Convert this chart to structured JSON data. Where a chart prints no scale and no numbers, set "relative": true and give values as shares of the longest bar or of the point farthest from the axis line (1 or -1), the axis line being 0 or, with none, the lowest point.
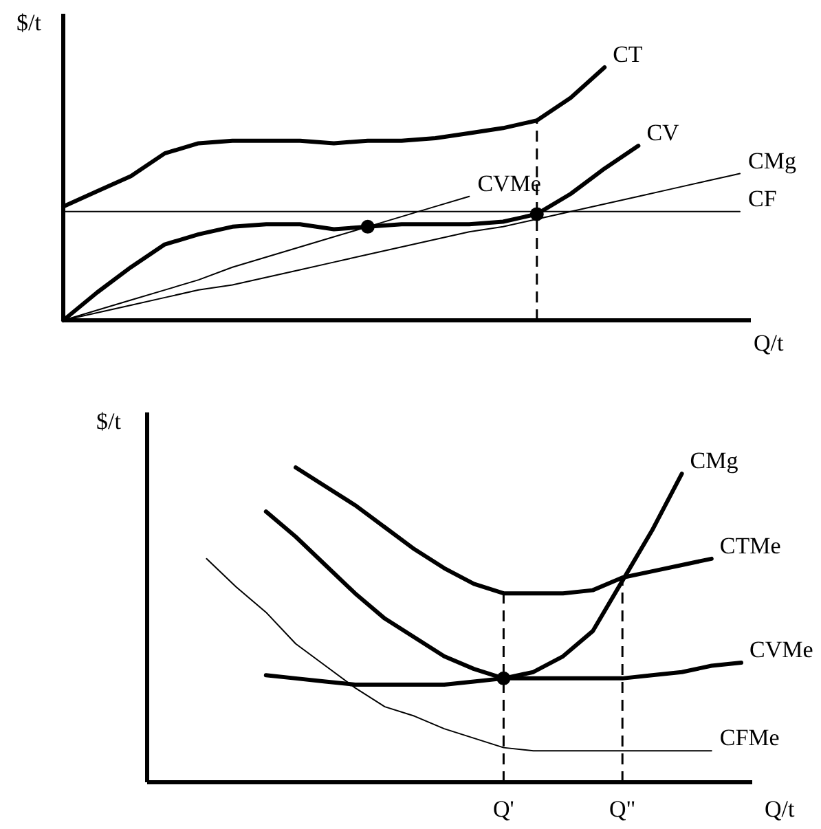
{
  "chart_data": [
    {
      "type": "line",
      "relative": true,
      "ylabel": "$/t",
      "xlabel": "Q/t",
      "tick_labels": false,
      "categories": [
        null,
        null,
        null,
        null,
        null,
        null,
        null,
        null,
        null,
        null,
        null,
        null,
        null,
        null,
        null,
        null,
        null,
        null,
        null,
        null,
        null
      ],
      "series": [
        {
          "name": "CT",
          "color": "#000000",
          "values": [
            0.45,
            0.51,
            0.57,
            0.66,
            0.7,
            0.71,
            0.71,
            0.71,
            0.7,
            0.71,
            0.71,
            0.72,
            0.74,
            0.76,
            0.79,
            0.88,
            1,
            null,
            null,
            null,
            null
          ]
        },
        {
          "name": "CV",
          "color": "#000000",
          "values": [
            0,
            0.11,
            0.21,
            0.3,
            0.34,
            0.37,
            0.38,
            0.38,
            0.36,
            0.37,
            0.38,
            0.38,
            0.38,
            0.39,
            0.42,
            0.5,
            0.6,
            0.69,
            null,
            null,
            null
          ]
        },
        {
          "name": "CF",
          "color": "#000000",
          "values": [
            0.43,
            0.43,
            0.43,
            0.43,
            0.43,
            0.43,
            0.43,
            0.43,
            0.43,
            0.43,
            0.43,
            0.43,
            0.43,
            0.43,
            0.43,
            0.43,
            0.43,
            0.43,
            0.43,
            0.43,
            0.43
          ]
        },
        {
          "name": "CMg",
          "color": "#000000",
          "values": [
            0,
            0.03,
            0.06,
            0.09,
            0.12,
            0.14,
            0.17,
            0.2,
            0.23,
            0.26,
            0.29,
            0.32,
            0.35,
            0.37,
            0.4,
            0.43,
            0.46,
            0.49,
            0.52,
            0.55,
            0.58
          ]
        },
        {
          "name": "CVMe",
          "color": "#000000",
          "values": [
            0,
            0.04,
            0.08,
            0.12,
            0.16,
            0.21,
            0.25,
            0.29,
            0.33,
            0.37,
            0.41,
            0.45,
            0.49,
            null,
            null,
            null,
            null,
            null,
            null,
            null,
            null
          ]
        }
      ]
    },
    {
      "type": "line",
      "relative": true,
      "ylabel": "$/t",
      "xlabel": "Q/t",
      "tick_labels": "x",
      "categories": [
        null,
        null,
        null,
        null,
        null,
        null,
        null,
        null,
        null,
        null,
        null,
        null,
        "Q'",
        null,
        null,
        null,
        "Q\"",
        null,
        null,
        null,
        null
      ],
      "ref_lines": [
        {
          "axis": "x",
          "value": "Q'",
          "line_style": "dashed",
          "color": "#000000"
        },
        {
          "axis": "x",
          "value": "Q\"",
          "line_style": "dashed",
          "color": "#000000"
        }
      ],
      "series": [
        {
          "name": "CMg",
          "color": "#000000",
          "values": [
            null,
            null,
            null,
            null,
            0.86,
            0.78,
            0.69,
            0.6,
            0.52,
            0.46,
            0.4,
            0.36,
            0.33,
            0.35,
            0.4,
            0.48,
            0.64,
            0.8,
            0.98,
            null,
            null
          ]
        },
        {
          "name": "CTMe",
          "color": "#000000",
          "values": [
            null,
            null,
            null,
            null,
            null,
            1,
            0.94,
            0.88,
            0.81,
            0.74,
            0.68,
            0.63,
            0.6,
            0.6,
            0.6,
            0.61,
            0.65,
            0.67,
            0.69,
            0.71,
            null
          ]
        },
        {
          "name": "CVMe",
          "color": "#000000",
          "values": [
            null,
            null,
            null,
            null,
            0.34,
            0.33,
            0.32,
            0.31,
            0.31,
            0.31,
            0.31,
            0.32,
            0.33,
            0.33,
            0.33,
            0.33,
            0.33,
            0.34,
            0.35,
            0.37,
            0.38
          ]
        },
        {
          "name": "CFMe",
          "color": "#000000",
          "values": [
            null,
            null,
            0.71,
            0.62,
            0.54,
            0.44,
            0.37,
            0.3,
            0.24,
            0.21,
            0.17,
            0.14,
            0.11,
            0.1,
            0.1,
            0.1,
            0.1,
            0.1,
            0.1,
            0.1,
            null
          ]
        },
        {
          "type": "scatter",
          "marker": "circle",
          "color": "#000000",
          "values": [
            null,
            null,
            null,
            null,
            null,
            null,
            null,
            null,
            null,
            null,
            null,
            null,
            0.33,
            null,
            null,
            null,
            null,
            null,
            null,
            null,
            null
          ]
        }
      ]
    }
  ]
}
